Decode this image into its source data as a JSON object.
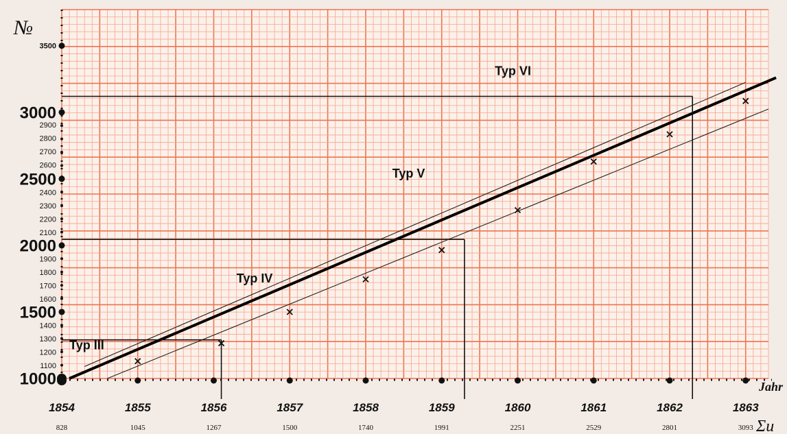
{
  "chart_data": {
    "type": "line",
    "y_axis_label": "№",
    "x_axis_label": "Jahr",
    "x_sum_label": "Σu",
    "ylim": [
      1000,
      3500
    ],
    "xlim": [
      1854,
      1863
    ],
    "y_ticks_major": [
      "1000",
      "1500",
      "2000",
      "2500",
      "3000",
      "3500"
    ],
    "y_ticks_minor": [
      "1100",
      "1200",
      "1300",
      "1400",
      "1600",
      "1700",
      "1800",
      "1900",
      "2100",
      "2200",
      "2300",
      "2400",
      "2600",
      "2700",
      "2800",
      "2900"
    ],
    "years": [
      {
        "year": "1854",
        "sum": "828"
      },
      {
        "year": "1855",
        "sum": "1045"
      },
      {
        "year": "1856",
        "sum": "1267"
      },
      {
        "year": "1857",
        "sum": "1500"
      },
      {
        "year": "1858",
        "sum": "1740"
      },
      {
        "year": "1859",
        "sum": "1991"
      },
      {
        "year": "1860",
        "sum": "2251"
      },
      {
        "year": "1861",
        "sum": "2529"
      },
      {
        "year": "1862",
        "sum": "2801"
      },
      {
        "year": "1863",
        "sum": "3093"
      }
    ],
    "observations": [
      {
        "x": 1855.0,
        "y": 1130
      },
      {
        "x": 1856.1,
        "y": 1265
      },
      {
        "x": 1857.0,
        "y": 1500
      },
      {
        "x": 1858.0,
        "y": 1745
      },
      {
        "x": 1859.0,
        "y": 1965
      },
      {
        "x": 1860.0,
        "y": 2265
      },
      {
        "x": 1861.0,
        "y": 2630
      },
      {
        "x": 1862.0,
        "y": 2835
      },
      {
        "x": 1863.0,
        "y": 3085
      }
    ],
    "trend_line": {
      "x": [
        1854.1,
        1863.4
      ],
      "y": [
        1000,
        3260
      ]
    },
    "upper_band": {
      "x": [
        1854.3,
        1863.0
      ],
      "y": [
        1090,
        3225
      ]
    },
    "lower_band": {
      "x": [
        1854.6,
        1863.3
      ],
      "y": [
        1000,
        3025
      ]
    },
    "guide_lines": [
      {
        "x": 1856.1,
        "y": 1290
      },
      {
        "x": 1859.3,
        "y": 2045
      },
      {
        "x": 1862.3,
        "y": 3120
      }
    ],
    "type_regions": [
      {
        "label": "Typ III",
        "x": 1854.1,
        "y": 1220
      },
      {
        "label": "Typ IV",
        "x": 1856.3,
        "y": 1720
      },
      {
        "label": "Typ V",
        "x": 1858.35,
        "y": 2510
      },
      {
        "label": "Typ VI",
        "x": 1859.7,
        "y": 3280
      }
    ]
  }
}
